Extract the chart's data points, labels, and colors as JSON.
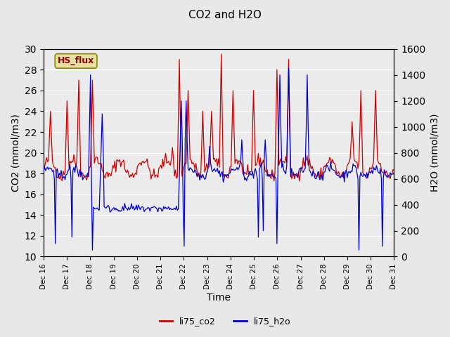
{
  "title": "CO2 and H2O",
  "xlabel": "Time",
  "ylabel_left": "CO2 (mmol/m3)",
  "ylabel_right": "H2O (mmol/m3)",
  "legend_label": "HS_flux",
  "series": [
    "li75_co2",
    "li75_h2o"
  ],
  "colors": [
    "#cc0000",
    "#0000cc"
  ],
  "ylim_left": [
    10,
    30
  ],
  "ylim_right": [
    0,
    1600
  ],
  "yticks_left": [
    10,
    12,
    14,
    16,
    18,
    20,
    22,
    24,
    26,
    28,
    30
  ],
  "yticks_right": [
    0,
    200,
    400,
    600,
    800,
    1000,
    1200,
    1400,
    1600
  ],
  "background_color": "#e8e8e8",
  "plot_bg_color": "#f0f0f0",
  "legend_box_color": "#e8e0a0",
  "legend_box_border": "#888800",
  "n_points": 360,
  "x_start": 16,
  "x_end": 31,
  "xtick_positions": [
    16,
    17,
    18,
    19,
    20,
    21,
    22,
    23,
    24,
    25,
    26,
    27,
    28,
    29,
    30,
    31
  ],
  "xtick_labels": [
    "Dec 16",
    "Dec 17",
    "Dec 18",
    "Dec 19",
    "Dec 20",
    "Dec 21",
    "Dec 22",
    "Dec 23",
    "Dec 24",
    "Dec 25",
    "Dec 26",
    "Dec 27",
    "Dec 28",
    "Dec 29",
    "Dec 30",
    "Dec 31"
  ]
}
